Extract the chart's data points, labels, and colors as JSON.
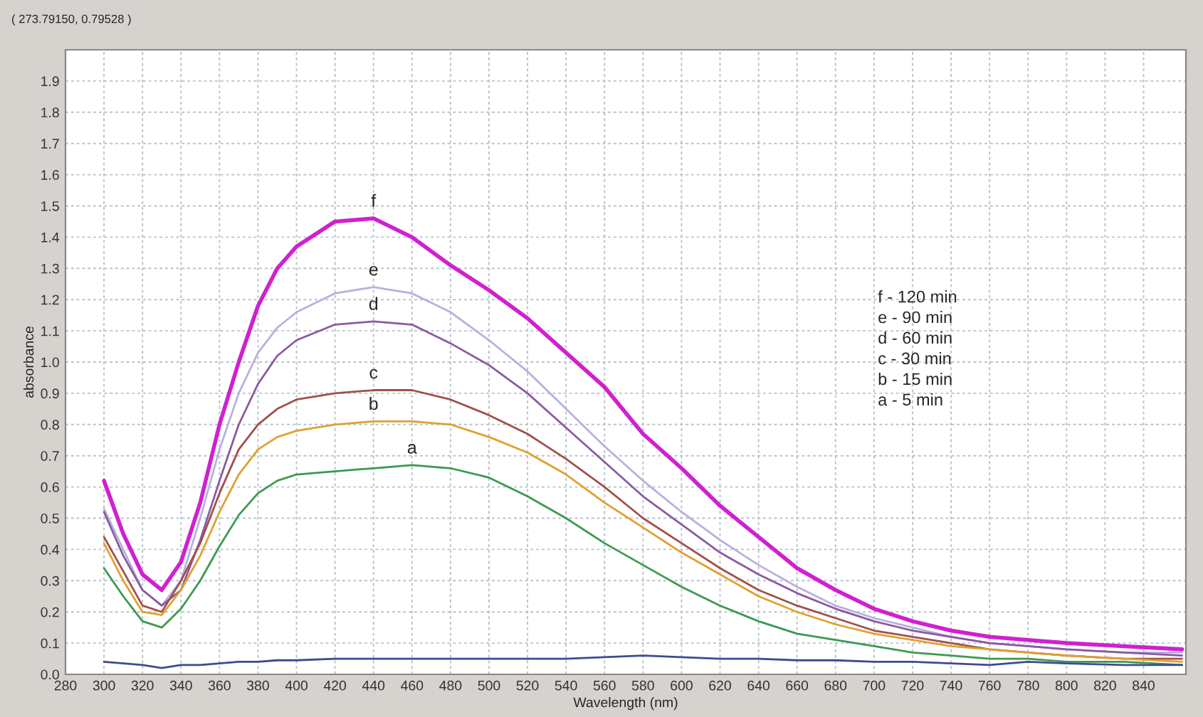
{
  "chart_data": {
    "type": "line",
    "xlabel": "Wavelength (nm)",
    "ylabel": "absorbance",
    "xlim": [
      280,
      862
    ],
    "ylim": [
      0,
      2.0
    ],
    "xticks": [
      280,
      300,
      320,
      340,
      360,
      380,
      400,
      420,
      440,
      460,
      480,
      500,
      520,
      540,
      560,
      580,
      600,
      620,
      640,
      660,
      680,
      700,
      720,
      740,
      760,
      780,
      800,
      820,
      840
    ],
    "yticks": [
      {
        "value": 0,
        "label": "0.0"
      },
      {
        "value": 0.1,
        "label": "0.1"
      },
      {
        "value": 0.2,
        "label": "0.2"
      },
      {
        "value": 0.3,
        "label": "0.3"
      },
      {
        "value": 0.4,
        "label": "0.4"
      },
      {
        "value": 0.5,
        "label": "0.5"
      },
      {
        "value": 0.6,
        "label": "0.6"
      },
      {
        "value": 0.7,
        "label": "0.7"
      },
      {
        "value": 0.8,
        "label": "0.8"
      },
      {
        "value": 0.9,
        "label": "0.9"
      },
      {
        "value": 1.0,
        "label": "1.0"
      },
      {
        "value": 1.1,
        "label": "1.1"
      },
      {
        "value": 1.2,
        "label": "1.2"
      },
      {
        "value": 1.3,
        "label": "1.3"
      },
      {
        "value": 1.4,
        "label": "1.4"
      },
      {
        "value": 1.5,
        "label": "1.5"
      },
      {
        "value": 1.6,
        "label": "1.6"
      },
      {
        "value": 1.7,
        "label": "1.7"
      },
      {
        "value": 1.8,
        "label": "1.8"
      },
      {
        "value": 1.9,
        "label": "1.9"
      }
    ],
    "grid": true,
    "marker": "none",
    "line_style": "solid",
    "x": [
      300,
      310,
      320,
      330,
      340,
      350,
      360,
      370,
      380,
      390,
      400,
      420,
      440,
      460,
      480,
      500,
      520,
      540,
      560,
      580,
      600,
      620,
      640,
      660,
      680,
      700,
      720,
      740,
      760,
      780,
      800,
      830,
      860
    ],
    "series": [
      {
        "name": "f",
        "color": "#d020d0",
        "values": [
          0.62,
          0.45,
          0.32,
          0.27,
          0.36,
          0.55,
          0.8,
          1.0,
          1.18,
          1.3,
          1.37,
          1.45,
          1.46,
          1.4,
          1.31,
          1.23,
          1.14,
          1.03,
          0.92,
          0.77,
          0.66,
          0.54,
          0.44,
          0.34,
          0.27,
          0.21,
          0.17,
          0.14,
          0.12,
          0.11,
          0.1,
          0.09,
          0.08
        ]
      },
      {
        "name": "e",
        "color": "#b8b0dc",
        "values": [
          0.53,
          0.4,
          0.27,
          0.22,
          0.3,
          0.5,
          0.72,
          0.9,
          1.03,
          1.11,
          1.16,
          1.22,
          1.24,
          1.22,
          1.16,
          1.07,
          0.97,
          0.85,
          0.73,
          0.62,
          0.52,
          0.43,
          0.35,
          0.28,
          0.22,
          0.18,
          0.15,
          0.12,
          0.1,
          0.09,
          0.08,
          0.07,
          0.07
        ]
      },
      {
        "name": "d",
        "color": "#8a5aa0",
        "values": [
          0.52,
          0.38,
          0.27,
          0.22,
          0.27,
          0.43,
          0.62,
          0.8,
          0.93,
          1.02,
          1.07,
          1.12,
          1.13,
          1.12,
          1.06,
          0.99,
          0.9,
          0.79,
          0.68,
          0.57,
          0.48,
          0.39,
          0.32,
          0.26,
          0.21,
          0.17,
          0.14,
          0.12,
          0.1,
          0.09,
          0.08,
          0.07,
          0.06
        ]
      },
      {
        "name": "c",
        "color": "#a0504a",
        "values": [
          0.44,
          0.33,
          0.22,
          0.2,
          0.3,
          0.42,
          0.58,
          0.72,
          0.8,
          0.85,
          0.88,
          0.9,
          0.91,
          0.91,
          0.88,
          0.83,
          0.77,
          0.69,
          0.6,
          0.5,
          0.42,
          0.34,
          0.27,
          0.22,
          0.18,
          0.14,
          0.12,
          0.1,
          0.08,
          0.07,
          0.06,
          0.05,
          0.05
        ]
      },
      {
        "name": "b",
        "color": "#e0a030",
        "values": [
          0.42,
          0.3,
          0.2,
          0.19,
          0.27,
          0.38,
          0.52,
          0.64,
          0.72,
          0.76,
          0.78,
          0.8,
          0.81,
          0.81,
          0.8,
          0.76,
          0.71,
          0.64,
          0.55,
          0.47,
          0.39,
          0.32,
          0.25,
          0.2,
          0.16,
          0.13,
          0.11,
          0.09,
          0.08,
          0.07,
          0.06,
          0.05,
          0.04
        ]
      },
      {
        "name": "a",
        "color": "#3a9a50",
        "values": [
          0.34,
          0.25,
          0.17,
          0.15,
          0.21,
          0.3,
          0.41,
          0.51,
          0.58,
          0.62,
          0.64,
          0.65,
          0.66,
          0.67,
          0.66,
          0.63,
          0.57,
          0.5,
          0.42,
          0.35,
          0.28,
          0.22,
          0.17,
          0.13,
          0.11,
          0.09,
          0.07,
          0.06,
          0.05,
          0.05,
          0.04,
          0.04,
          0.03
        ]
      },
      {
        "color": "#404a90",
        "values": [
          0.04,
          0.035,
          0.03,
          0.02,
          0.03,
          0.03,
          0.035,
          0.04,
          0.04,
          0.045,
          0.045,
          0.05,
          0.05,
          0.05,
          0.05,
          0.05,
          0.05,
          0.05,
          0.055,
          0.06,
          0.055,
          0.05,
          0.05,
          0.045,
          0.045,
          0.04,
          0.04,
          0.035,
          0.03,
          0.04,
          0.035,
          0.03,
          0.03
        ]
      }
    ],
    "annotations": [
      "f - 120 min",
      "e - 90 min",
      "d - 60 min",
      "c - 30 min",
      "b - 15 min",
      "a - 5 min",
      "( 273.79150, 0.79528 )"
    ]
  }
}
